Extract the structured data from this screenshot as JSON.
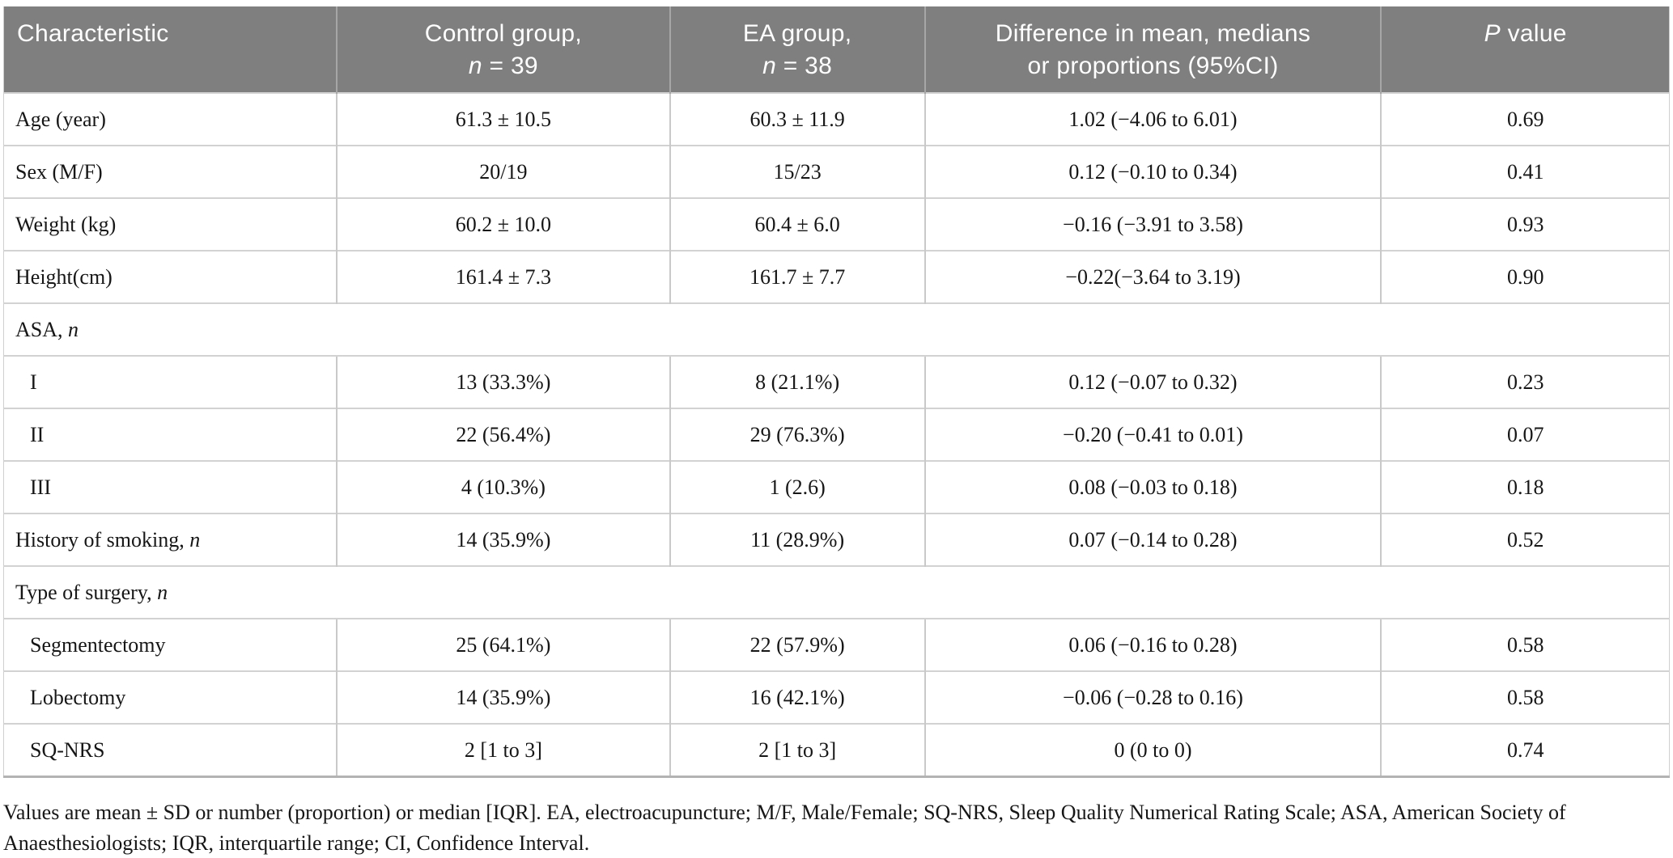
{
  "colors": {
    "header_background": "#7f7f7f",
    "header_text": "#ffffff",
    "header_divider": "#a6a6a6",
    "row_divider": "#d2d2d2",
    "column_divider": "#c9c9c9",
    "table_bottom_border": "#b3b3b3",
    "body_text": "#161616"
  },
  "table": {
    "header": {
      "characteristic": "Characteristic",
      "control": "Control group,<br><i>n</i> = 39",
      "ea": "EA group,<br><i>n</i> = 38",
      "difference": "Difference in mean, medians<br>or proportions (95%CI)",
      "p_value": "<i>P</i> value"
    },
    "rows": [
      {
        "type": "data",
        "indent": false,
        "label": "Age (year)",
        "control": "61.3 ± 10.5",
        "ea": "60.3 ± 11.9",
        "difference": "1.02 (−4.06 to 6.01)",
        "p": "0.69"
      },
      {
        "type": "data",
        "indent": false,
        "label": "Sex (M/F)",
        "control": "20/19",
        "ea": "15/23",
        "difference": "0.12 (−0.10 to 0.34)",
        "p": "0.41"
      },
      {
        "type": "data",
        "indent": false,
        "label": "Weight (kg)",
        "control": "60.2 ± 10.0",
        "ea": "60.4 ± 6.0",
        "difference": "−0.16 (−3.91 to 3.58)",
        "p": "0.93"
      },
      {
        "type": "data",
        "indent": false,
        "label": "Height(cm)",
        "control": "161.4 ± 7.3",
        "ea": "161.7 ± 7.7",
        "difference": "−0.22(−3.64 to 3.19)",
        "p": "0.90"
      },
      {
        "type": "section",
        "label": "ASA, <i>n</i>"
      },
      {
        "type": "data",
        "indent": true,
        "label": "I",
        "control": "13 (33.3%)",
        "ea": "8 (21.1%)",
        "difference": "0.12 (−0.07 to 0.32)",
        "p": "0.23"
      },
      {
        "type": "data",
        "indent": true,
        "label": "II",
        "control": "22 (56.4%)",
        "ea": "29 (76.3%)",
        "difference": "−0.20 (−0.41 to 0.01)",
        "p": "0.07"
      },
      {
        "type": "data",
        "indent": true,
        "label": "III",
        "control": "4 (10.3%)",
        "ea": "1 (2.6)",
        "difference": "0.08 (−0.03 to 0.18)",
        "p": "0.18"
      },
      {
        "type": "data",
        "indent": false,
        "label": "History of smoking, <i>n</i>",
        "control": "14 (35.9%)",
        "ea": "11 (28.9%)",
        "difference": "0.07 (−0.14 to 0.28)",
        "p": "0.52"
      },
      {
        "type": "section",
        "label": "Type of surgery, <i>n</i>"
      },
      {
        "type": "data",
        "indent": true,
        "label": "Segmentectomy",
        "control": "25 (64.1%)",
        "ea": "22 (57.9%)",
        "difference": "0.06 (−0.16 to 0.28)",
        "p": "0.58"
      },
      {
        "type": "data",
        "indent": true,
        "label": "Lobectomy",
        "control": "14 (35.9%)",
        "ea": "16 (42.1%)",
        "difference": "−0.06 (−0.28 to 0.16)",
        "p": "0.58"
      },
      {
        "type": "data",
        "indent": true,
        "label": "SQ-NRS",
        "control": "2 [1 to 3]",
        "ea": "2 [1 to 3]",
        "difference": "0 (0 to 0)",
        "p": "0.74"
      }
    ]
  },
  "footnote": "Values are mean ± SD or number (proportion) or median [IQR]. EA, electroacupuncture; M/F, Male/Female; SQ-NRS, Sleep Quality Numerical Rating Scale; ASA, American Society of Anaesthesiologists; IQR, interquartile range; CI, Confidence Interval."
}
